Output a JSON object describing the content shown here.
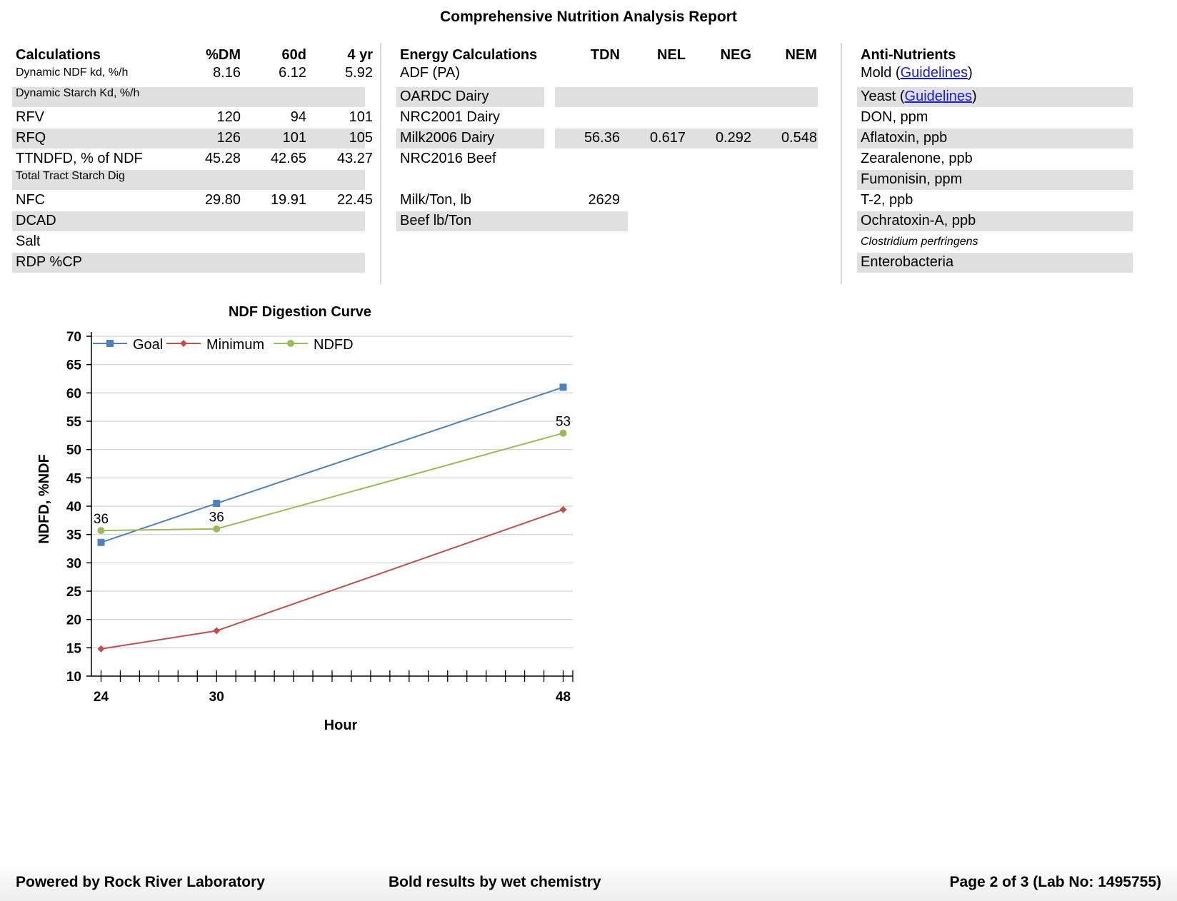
{
  "report_title": "Comprehensive Nutrition Analysis Report",
  "calculations": {
    "headers": [
      "Calculations",
      "%DM",
      "60d",
      "4 yr"
    ],
    "rows": [
      {
        "label": "Dynamic NDF kd, %/h",
        "values": [
          "8.16",
          "6.12",
          "5.92"
        ],
        "small": true,
        "shaded": false
      },
      {
        "label": "Dynamic Starch Kd, %/h",
        "values": [
          "",
          "",
          ""
        ],
        "small": true,
        "shaded": true
      },
      {
        "label": "RFV",
        "values": [
          "120",
          "94",
          "101"
        ],
        "small": false,
        "shaded": false
      },
      {
        "label": "RFQ",
        "values": [
          "126",
          "101",
          "105"
        ],
        "small": false,
        "shaded": true
      },
      {
        "label": "TTNDFD, % of NDF",
        "values": [
          "45.28",
          "42.65",
          "43.27"
        ],
        "small": false,
        "shaded": false
      },
      {
        "label": "Total Tract Starch Dig",
        "values": [
          "",
          "",
          ""
        ],
        "small": true,
        "shaded": true
      },
      {
        "label": "NFC",
        "values": [
          "29.80",
          "19.91",
          "22.45"
        ],
        "small": false,
        "shaded": false
      },
      {
        "label": "DCAD",
        "values": [
          "",
          "",
          ""
        ],
        "small": false,
        "shaded": true
      },
      {
        "label": "Salt",
        "values": [
          "",
          "",
          ""
        ],
        "small": false,
        "shaded": false
      },
      {
        "label": "RDP %CP",
        "values": [
          "",
          "",
          ""
        ],
        "small": false,
        "shaded": true
      }
    ]
  },
  "energy": {
    "headers": [
      "Energy Calculations",
      "TDN",
      "NEL",
      "NEG",
      "NEM"
    ],
    "rows": [
      {
        "label": "ADF (PA)",
        "values": [
          "",
          "",
          "",
          ""
        ],
        "shaded": false
      },
      {
        "label": "OARDC Dairy",
        "values": [
          "",
          "",
          "",
          ""
        ],
        "shaded": true
      },
      {
        "label": "NRC2001 Dairy",
        "values": [
          "",
          "",
          "",
          ""
        ],
        "shaded": false
      },
      {
        "label": "Milk2006 Dairy",
        "values": [
          "56.36",
          "0.617",
          "0.292",
          "0.548"
        ],
        "shaded": true
      },
      {
        "label": "NRC2016 Beef",
        "values": [
          "",
          "",
          "",
          ""
        ],
        "shaded": false
      }
    ],
    "extra_rows": [
      {
        "label": "Milk/Ton, lb",
        "value": "2629",
        "shaded": false
      },
      {
        "label": "Beef lb/Ton",
        "value": "",
        "shaded": true
      }
    ]
  },
  "anti_nutrients": {
    "header": "Anti-Nutrients",
    "rows": [
      {
        "label": "Mold (",
        "link": "Guidelines",
        "suffix": ")",
        "shaded": false,
        "italic": false
      },
      {
        "label": "Yeast (",
        "link": "Guidelines",
        "suffix": ")",
        "shaded": true,
        "italic": false
      },
      {
        "label": "DON, ppm",
        "link": "",
        "suffix": "",
        "shaded": false,
        "italic": false
      },
      {
        "label": "Aflatoxin, ppb",
        "link": "",
        "suffix": "",
        "shaded": true,
        "italic": false
      },
      {
        "label": "Zearalenone, ppb",
        "link": "",
        "suffix": "",
        "shaded": false,
        "italic": false
      },
      {
        "label": "Fumonisin, ppm",
        "link": "",
        "suffix": "",
        "shaded": true,
        "italic": false
      },
      {
        "label": "T-2, ppb",
        "link": "",
        "suffix": "",
        "shaded": false,
        "italic": false
      },
      {
        "label": "Ochratoxin-A, ppb",
        "link": "",
        "suffix": "",
        "shaded": true,
        "italic": false
      },
      {
        "label": "Clostridium perfringens",
        "link": "",
        "suffix": "",
        "shaded": false,
        "italic": true
      },
      {
        "label": "Enterobacteria",
        "link": "",
        "suffix": "",
        "shaded": true,
        "italic": false
      }
    ]
  },
  "chart_data": {
    "type": "line",
    "title": "NDF Digestion Curve",
    "xlabel": "Hour",
    "ylabel": "NDFD, %NDF",
    "xlim": [
      23.5,
      48.5
    ],
    "ylim": [
      10,
      70
    ],
    "x_ticks": [
      24,
      30,
      48
    ],
    "y_ticks": [
      10,
      15,
      20,
      25,
      30,
      35,
      40,
      45,
      50,
      55,
      60,
      65,
      70
    ],
    "grid": true,
    "legend": "top-left",
    "series": [
      {
        "name": "Goal",
        "color": "#4f81bd",
        "marker": "square",
        "x": [
          24,
          30,
          48
        ],
        "y": [
          33.6,
          40.5,
          61.0
        ]
      },
      {
        "name": "Minimum",
        "color": "#c0504d",
        "marker": "diamond",
        "x": [
          24,
          30,
          48
        ],
        "y": [
          14.8,
          18.0,
          39.4
        ]
      },
      {
        "name": "NDFD",
        "color": "#9bbb59",
        "marker": "circle",
        "x": [
          24,
          30,
          48
        ],
        "y": [
          35.7,
          36.0,
          52.9
        ],
        "labels": [
          "36",
          "36",
          "53"
        ]
      }
    ]
  },
  "footer": {
    "left": "Powered by Rock River Laboratory",
    "center": "Bold results by wet chemistry",
    "right": "Page 2 of 3 (Lab No: 1495755)"
  }
}
